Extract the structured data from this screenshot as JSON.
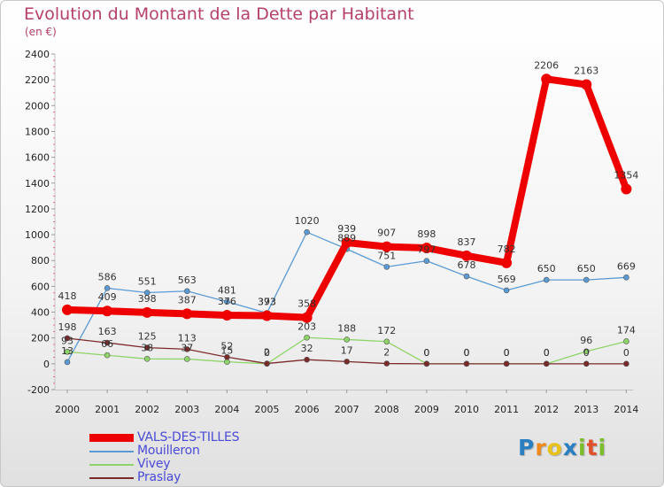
{
  "title": "Evolution du Montant de la Dette par Habitant",
  "unit": "(en €)",
  "logo": "Proxiti",
  "chart_data": {
    "type": "line",
    "x": [
      "2000",
      "2001",
      "2002",
      "2003",
      "2004",
      "2005",
      "2006",
      "2007",
      "2008",
      "2009",
      "2010",
      "2011",
      "2012",
      "2013",
      "2014"
    ],
    "ylim": [
      -200,
      2400
    ],
    "yticks": [
      -200,
      0,
      200,
      400,
      600,
      800,
      1000,
      1200,
      1400,
      1600,
      1800,
      2000,
      2200,
      2400
    ],
    "grid": false,
    "legend_position": "bottom-left",
    "series": [
      {
        "name": "VALS-DES-TILLES",
        "color": "#ee0000",
        "width": 8,
        "values": [
          418,
          409,
          398,
          387,
          376,
          373,
          358,
          939,
          907,
          898,
          837,
          782,
          2206,
          2163,
          1354
        ],
        "labels": [
          "418",
          "409",
          "398",
          "387",
          "376",
          "373",
          "358",
          "939",
          "907",
          "898",
          "837",
          "782",
          "2206",
          "2163",
          "1354"
        ]
      },
      {
        "name": "Mouilleron",
        "color": "#5a9bd5",
        "width": 1.3,
        "values": [
          13,
          586,
          551,
          563,
          481,
          393,
          1020,
          889,
          751,
          797,
          678,
          569,
          650,
          650,
          669
        ],
        "labels": [
          "13",
          "586",
          "551",
          "563",
          "481",
          "393",
          "1020",
          "889",
          "751",
          "797",
          "678",
          "569",
          "650",
          "650",
          "669"
        ]
      },
      {
        "name": "Vivey",
        "color": "#8ed468",
        "width": 1.3,
        "values": [
          93,
          66,
          38,
          37,
          15,
          0,
          203,
          188,
          172,
          0,
          0,
          0,
          0,
          96,
          174
        ],
        "labels": [
          "93",
          "66",
          "38",
          "37",
          "15",
          "0",
          "203",
          "188",
          "172",
          "0",
          "0",
          "0",
          "0",
          "96",
          "174"
        ]
      },
      {
        "name": "Praslay",
        "color": "#7b2a2a",
        "width": 1.3,
        "values": [
          198,
          163,
          125,
          113,
          52,
          2,
          32,
          17,
          2,
          0,
          0,
          0,
          0,
          0,
          0
        ],
        "labels": [
          "198",
          "163",
          "125",
          "113",
          "52",
          "2",
          "32",
          "17",
          "2",
          "0",
          "0",
          "0",
          "0",
          "0",
          "0"
        ]
      }
    ]
  }
}
